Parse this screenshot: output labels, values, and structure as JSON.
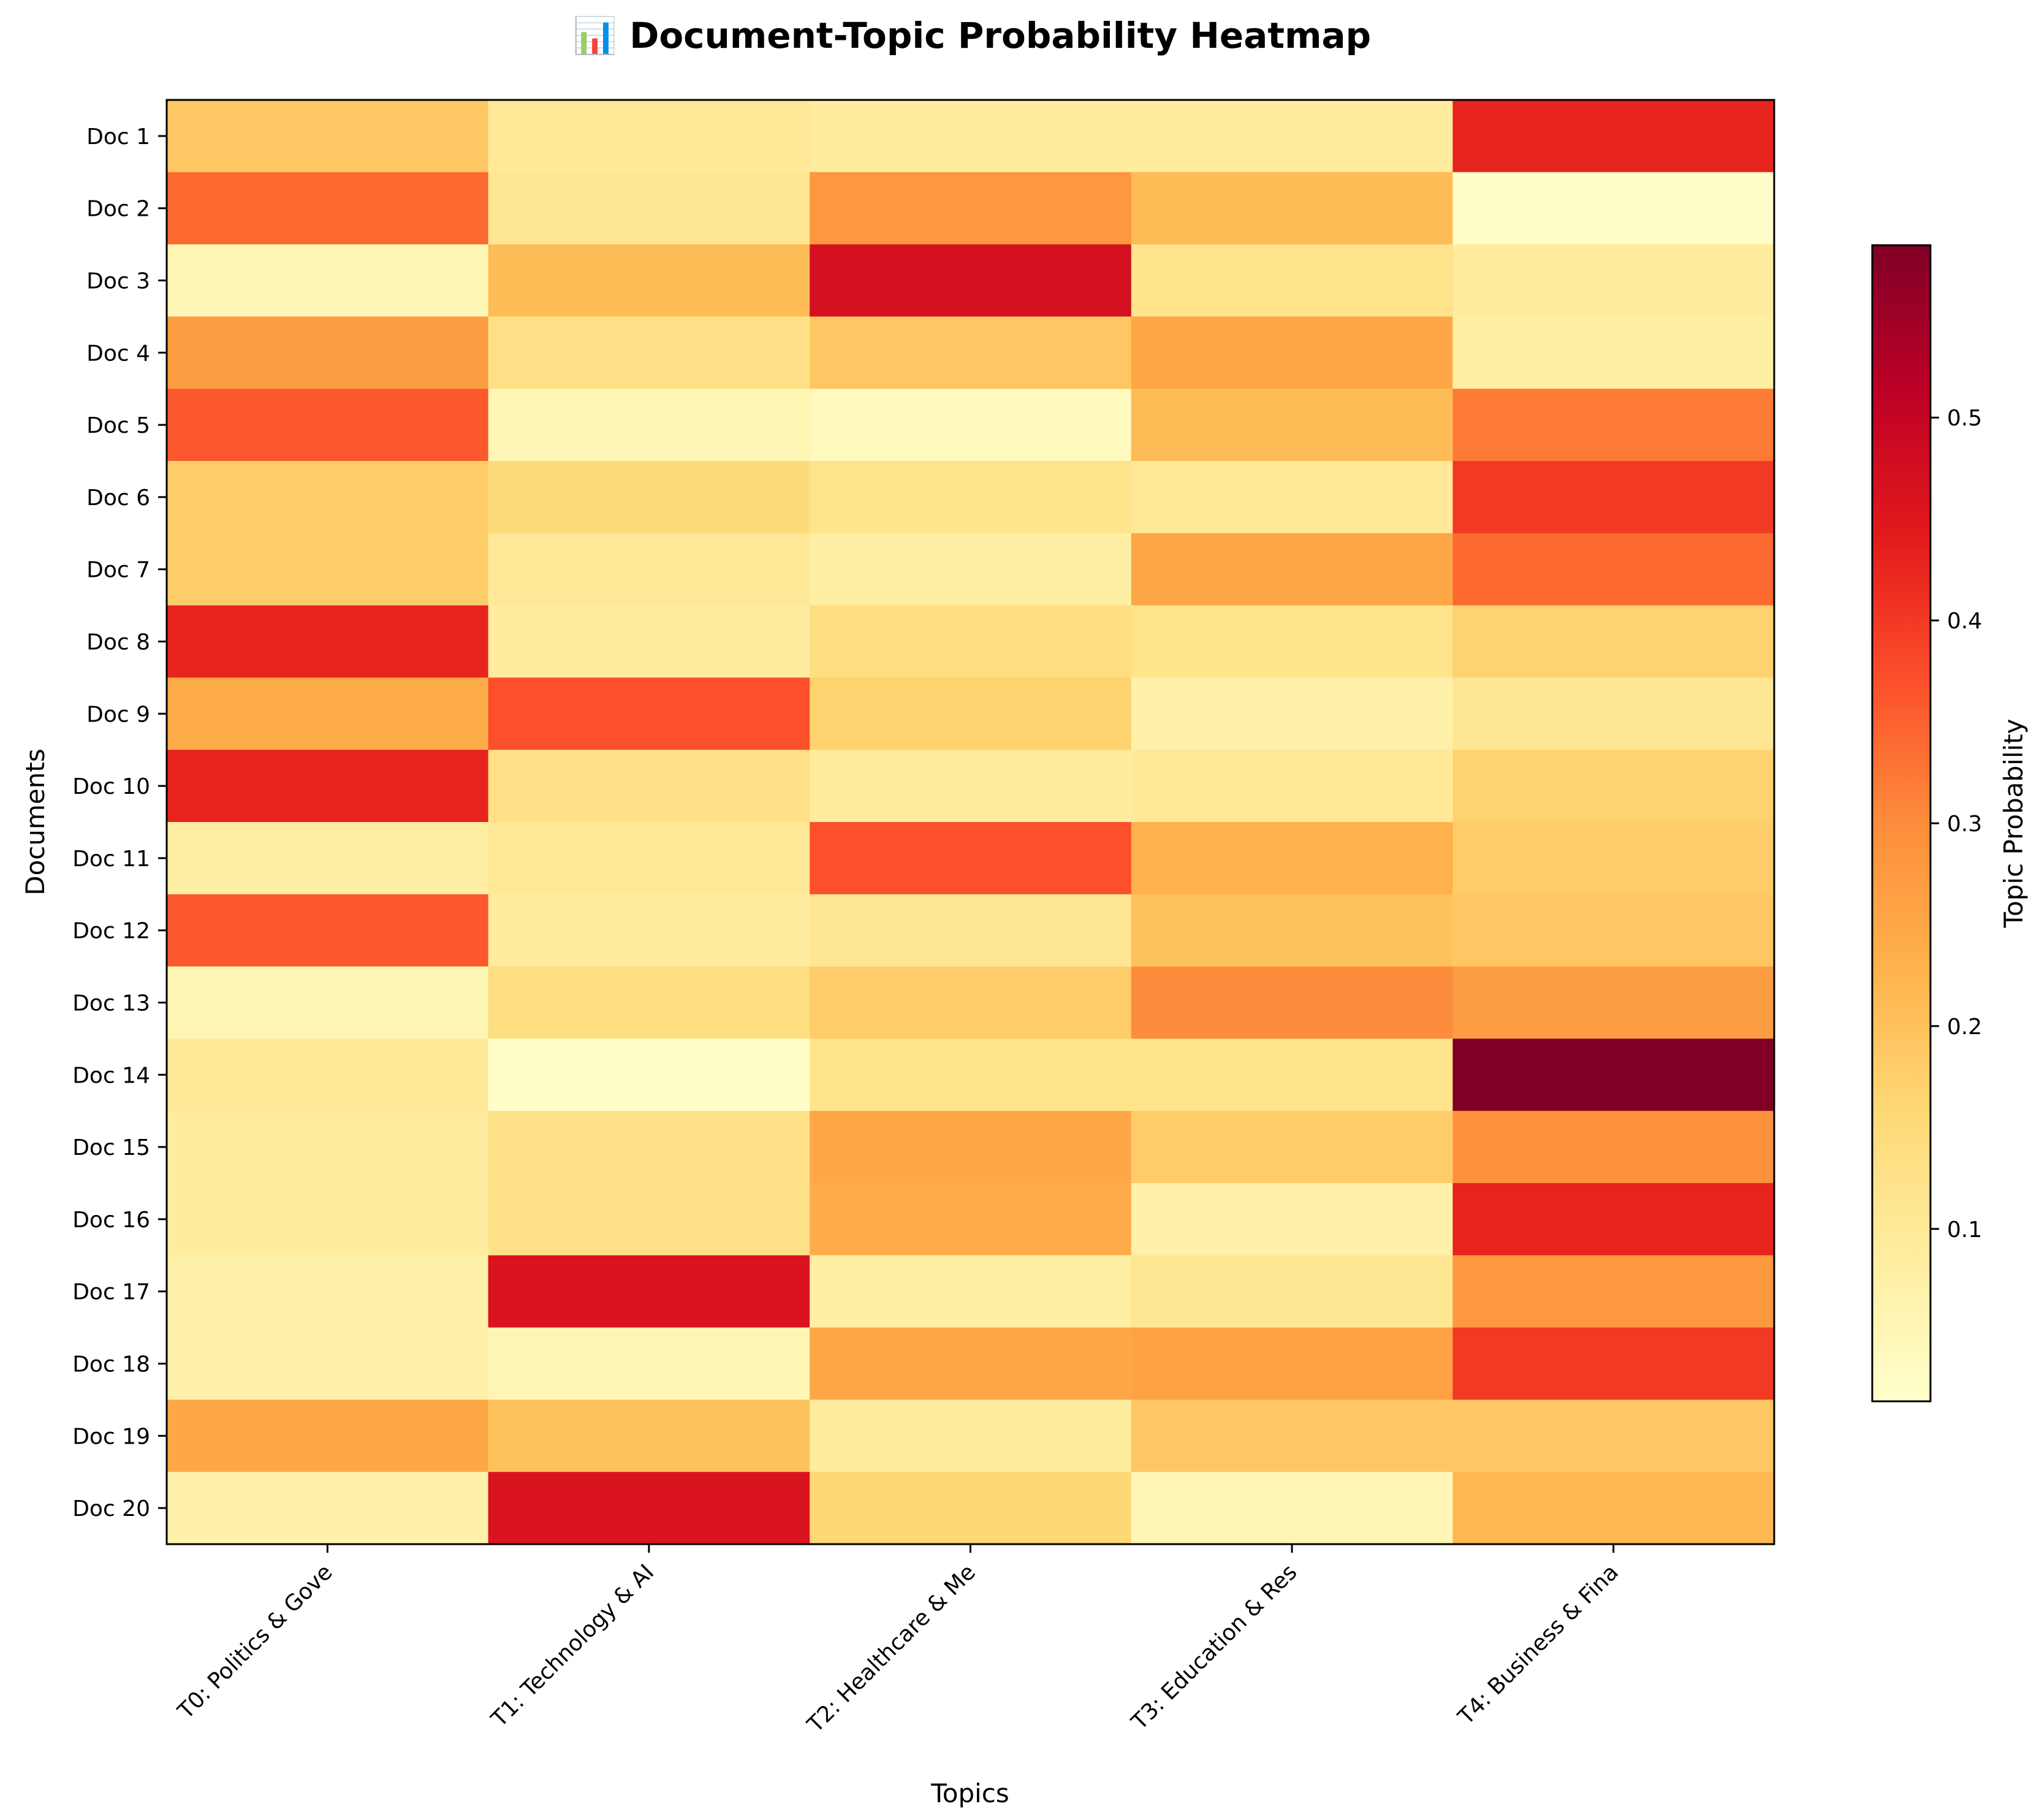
{
  "chart_data": {
    "type": "heatmap",
    "title": "📊 Document-Topic Probability Heatmap",
    "xlabel": "Topics",
    "ylabel": "Documents",
    "colorbar_label": "Topic Probability",
    "colormap": "YlOrRd",
    "color_range": [
      0.015,
      0.585
    ],
    "colorbar_ticks": [
      {
        "value": 0.1,
        "label": "0.1"
      },
      {
        "value": 0.2,
        "label": "0.2"
      },
      {
        "value": 0.3,
        "label": "0.3"
      },
      {
        "value": 0.4,
        "label": "0.4"
      },
      {
        "value": 0.5,
        "label": "0.5"
      }
    ],
    "columns": [
      "T0: Politics & Gove",
      "T1: Technology & AI",
      "T2: Healthcare & Me",
      "T3: Education & Res",
      "T4: Business & Fina"
    ],
    "rows": [
      "Doc 1",
      "Doc 2",
      "Doc 3",
      "Doc 4",
      "Doc 5",
      "Doc 6",
      "Doc 7",
      "Doc 8",
      "Doc 9",
      "Doc 10",
      "Doc 11",
      "Doc 12",
      "Doc 13",
      "Doc 14",
      "Doc 15",
      "Doc 16",
      "Doc 17",
      "Doc 18",
      "Doc 19",
      "Doc 20"
    ],
    "values": [
      [
        0.19,
        0.1,
        0.09,
        0.09,
        0.43
      ],
      [
        0.34,
        0.11,
        0.28,
        0.21,
        0.02
      ],
      [
        0.05,
        0.21,
        0.47,
        0.12,
        0.09
      ],
      [
        0.27,
        0.13,
        0.19,
        0.25,
        0.08
      ],
      [
        0.36,
        0.05,
        0.04,
        0.21,
        0.32
      ],
      [
        0.18,
        0.15,
        0.12,
        0.1,
        0.4
      ],
      [
        0.18,
        0.1,
        0.08,
        0.25,
        0.34
      ],
      [
        0.43,
        0.09,
        0.14,
        0.12,
        0.17
      ],
      [
        0.24,
        0.37,
        0.17,
        0.07,
        0.11
      ],
      [
        0.43,
        0.13,
        0.09,
        0.1,
        0.17
      ],
      [
        0.08,
        0.1,
        0.37,
        0.23,
        0.18
      ],
      [
        0.36,
        0.09,
        0.11,
        0.2,
        0.19
      ],
      [
        0.05,
        0.14,
        0.18,
        0.3,
        0.27
      ],
      [
        0.1,
        0.02,
        0.12,
        0.12,
        0.585
      ],
      [
        0.09,
        0.13,
        0.25,
        0.18,
        0.29
      ],
      [
        0.09,
        0.13,
        0.24,
        0.07,
        0.43
      ],
      [
        0.07,
        0.46,
        0.08,
        0.11,
        0.28
      ],
      [
        0.07,
        0.05,
        0.25,
        0.26,
        0.4
      ],
      [
        0.25,
        0.2,
        0.09,
        0.19,
        0.19
      ],
      [
        0.07,
        0.46,
        0.16,
        0.05,
        0.22
      ]
    ]
  }
}
